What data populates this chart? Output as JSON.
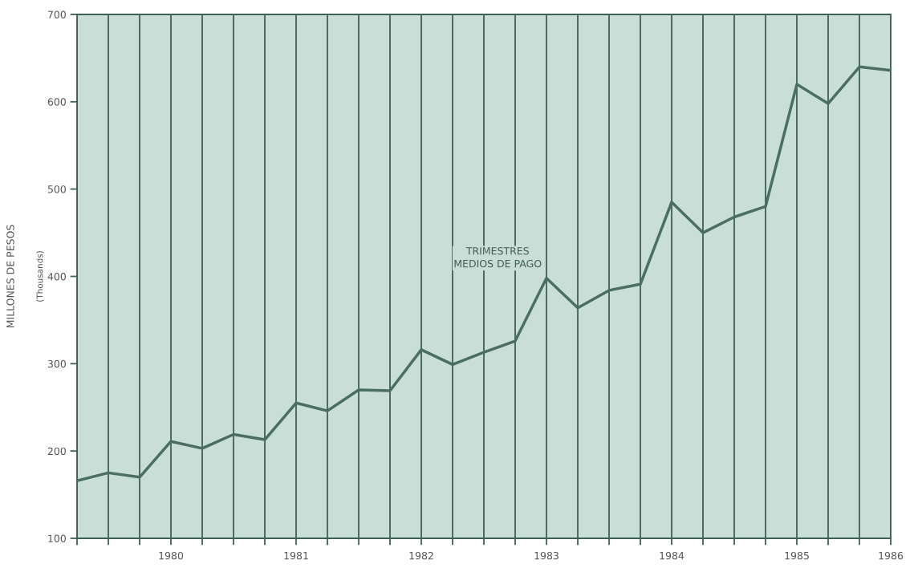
{
  "chart_data": {
    "type": "line",
    "ylabel": "MILLONES DE PESOS",
    "annotations": [
      "(Thousands)"
    ],
    "categories": [
      null,
      null,
      null,
      "1980",
      null,
      null,
      null,
      "1981",
      null,
      null,
      null,
      "1982",
      null,
      null,
      null,
      "1983",
      null,
      null,
      null,
      "1984",
      null,
      null,
      null,
      "1985",
      null,
      null,
      "1986"
    ],
    "series": [
      {
        "name": "TRIMESTRES\nMEDIOS DE PAGO",
        "color": "#4a6e62",
        "values": [
          166,
          175,
          170,
          211,
          203,
          219,
          213,
          255,
          246,
          270,
          269,
          316,
          299,
          313,
          326,
          398,
          364,
          384,
          391,
          485,
          450,
          468,
          480,
          620,
          598,
          640,
          636
        ]
      }
    ],
    "ylim": [
      100,
      700
    ],
    "yticks": [
      100,
      200,
      300,
      400,
      500,
      600,
      700
    ],
    "grid": "x",
    "legend": false,
    "marker": "none",
    "line_style": "solid"
  }
}
